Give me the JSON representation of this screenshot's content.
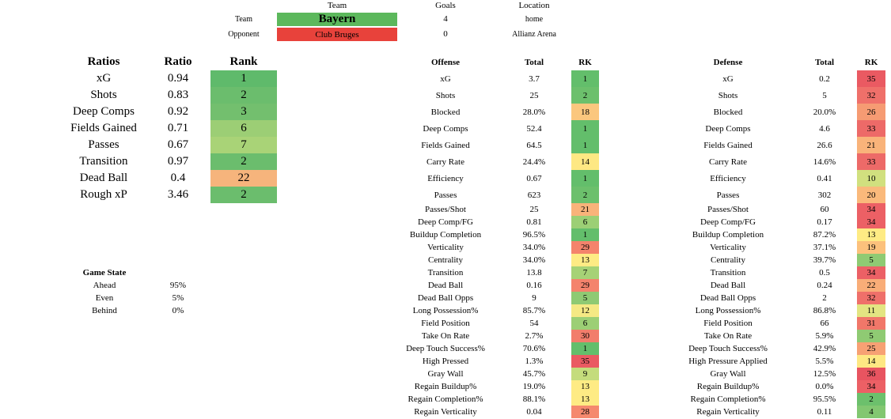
{
  "header": {
    "team_col": "Team",
    "goals_col": "Goals",
    "location_col": "Location",
    "team_row_label": "Team",
    "opponent_row_label": "Opponent",
    "team_name": "Bayern",
    "opponent_name": "Club Bruges",
    "team_goals": "4",
    "opponent_goals": "0",
    "team_location": "home",
    "venue": "Allianz Arena",
    "team_color": "#5cb85c",
    "opponent_color": "#e8423b"
  },
  "ratios": {
    "headers": [
      "Ratios",
      "Ratio",
      "Rank"
    ],
    "rows": [
      {
        "label": "xG",
        "ratio": "0.94",
        "rank": "1",
        "color": "#5fba6b"
      },
      {
        "label": "Shots",
        "ratio": "0.83",
        "rank": "2",
        "color": "#6bbd6d"
      },
      {
        "label": "Deep Comps",
        "ratio": "0.92",
        "rank": "3",
        "color": "#73bf6e"
      },
      {
        "label": "Fields Gained",
        "ratio": "0.71",
        "rank": "6",
        "color": "#9cce75"
      },
      {
        "label": "Passes",
        "ratio": "0.67",
        "rank": "7",
        "color": "#a9d377"
      },
      {
        "label": "Transition",
        "ratio": "0.97",
        "rank": "2",
        "color": "#6bbd6d"
      },
      {
        "label": "Dead Ball",
        "ratio": "0.4",
        "rank": "22",
        "color": "#f6b47c"
      },
      {
        "label": "Rough xP",
        "ratio": "3.46",
        "rank": "2",
        "color": "#6bbd6d"
      }
    ]
  },
  "game_state": {
    "title": "Game State",
    "rows": [
      {
        "label": "Ahead",
        "value": "95%"
      },
      {
        "label": "Even",
        "value": "5%"
      },
      {
        "label": "Behind",
        "value": "0%"
      }
    ]
  },
  "offense": {
    "headers": [
      "Offense",
      "Total",
      "RK"
    ],
    "rows": [
      {
        "label": "xG",
        "total": "3.7",
        "rk": "1",
        "color": "#63be6b"
      },
      {
        "label": "Shots",
        "total": "25",
        "rk": "2",
        "color": "#6cc06c"
      },
      {
        "label": "Blocked",
        "total": "28.0%",
        "rk": "18",
        "color": "#fbc77e"
      },
      {
        "label": "Deep Comps",
        "total": "52.4",
        "rk": "1",
        "color": "#63be6b"
      },
      {
        "label": "Fields Gained",
        "total": "64.5",
        "rk": "1",
        "color": "#63be6b"
      },
      {
        "label": "Carry Rate",
        "total": "24.4%",
        "rk": "14",
        "color": "#fee883"
      },
      {
        "label": "Efficiency",
        "total": "0.67",
        "rk": "1",
        "color": "#63be6b"
      },
      {
        "label": "Passes",
        "total": "623",
        "rk": "2",
        "color": "#6cc06c"
      },
      {
        "label": "Passes/Shot",
        "total": "25",
        "rk": "21",
        "color": "#f9b37a"
      },
      {
        "label": "Deep Comp/FG",
        "total": "0.81",
        "rk": "6",
        "color": "#9ccf75"
      },
      {
        "label": "Buildup Completion",
        "total": "96.5%",
        "rk": "1",
        "color": "#63be6b"
      },
      {
        "label": "Verticality",
        "total": "34.0%",
        "rk": "29",
        "color": "#f4836c"
      },
      {
        "label": "Centrality",
        "total": "34.0%",
        "rk": "13",
        "color": "#feeb84"
      },
      {
        "label": "Transition",
        "total": "13.8",
        "rk": "7",
        "color": "#a6d276"
      },
      {
        "label": "Dead Ball",
        "total": "0.16",
        "rk": "29",
        "color": "#f4836c"
      },
      {
        "label": "Dead Ball Opps",
        "total": "9",
        "rk": "5",
        "color": "#8fca73"
      },
      {
        "label": "Long Possession%",
        "total": "85.7%",
        "rk": "12",
        "color": "#f5e984"
      },
      {
        "label": "Field Position",
        "total": "54",
        "rk": "6",
        "color": "#9ccf75"
      },
      {
        "label": "Take On Rate",
        "total": "2.7%",
        "rk": "30",
        "color": "#f27d6b"
      },
      {
        "label": "Deep Touch Success%",
        "total": "70.6%",
        "rk": "1",
        "color": "#63be6b"
      },
      {
        "label": "High Pressed",
        "total": "1.3%",
        "rk": "35",
        "color": "#ea5a62"
      },
      {
        "label": "Gray Wall",
        "total": "45.7%",
        "rk": "9",
        "color": "#c4dc7c"
      },
      {
        "label": "Regain Buildup%",
        "total": "19.0%",
        "rk": "13",
        "color": "#feeb84"
      },
      {
        "label": "Regain Completion%",
        "total": "88.1%",
        "rk": "13",
        "color": "#feeb84"
      },
      {
        "label": "Regain Verticality",
        "total": "0.04",
        "rk": "28",
        "color": "#f5896e"
      }
    ]
  },
  "defense": {
    "headers": [
      "Defense",
      "Total",
      "RK"
    ],
    "rows": [
      {
        "label": "xG",
        "total": "0.2",
        "rk": "35",
        "color": "#ea5a62"
      },
      {
        "label": "Shots",
        "total": "5",
        "rk": "32",
        "color": "#ef706a"
      },
      {
        "label": "Blocked",
        "total": "20.0%",
        "rk": "26",
        "color": "#f69b73"
      },
      {
        "label": "Deep Comps",
        "total": "4.6",
        "rk": "33",
        "color": "#ed6a68"
      },
      {
        "label": "Fields Gained",
        "total": "26.6",
        "rk": "21",
        "color": "#f9b37a"
      },
      {
        "label": "Carry Rate",
        "total": "14.6%",
        "rk": "33",
        "color": "#ed6a68"
      },
      {
        "label": "Efficiency",
        "total": "0.41",
        "rk": "10",
        "color": "#d1e07f"
      },
      {
        "label": "Passes",
        "total": "302",
        "rk": "20",
        "color": "#fab97b"
      },
      {
        "label": "Passes/Shot",
        "total": "60",
        "rk": "34",
        "color": "#ec6065"
      },
      {
        "label": "Deep Comp/FG",
        "total": "0.17",
        "rk": "34",
        "color": "#ec6065"
      },
      {
        "label": "Buildup Completion",
        "total": "87.2%",
        "rk": "13",
        "color": "#feeb84"
      },
      {
        "label": "Verticality",
        "total": "37.1%",
        "rk": "19",
        "color": "#fcc17c"
      },
      {
        "label": "Centrality",
        "total": "39.7%",
        "rk": "5",
        "color": "#8fca73"
      },
      {
        "label": "Transition",
        "total": "0.5",
        "rk": "34",
        "color": "#ec6065"
      },
      {
        "label": "Dead Ball",
        "total": "0.24",
        "rk": "22",
        "color": "#f9ad78"
      },
      {
        "label": "Dead Ball Opps",
        "total": "2",
        "rk": "32",
        "color": "#ef706a"
      },
      {
        "label": "Long Possession%",
        "total": "86.8%",
        "rk": "11",
        "color": "#e3e582"
      },
      {
        "label": "Field Position",
        "total": "66",
        "rk": "31",
        "color": "#f17769"
      },
      {
        "label": "Take On Rate",
        "total": "5.9%",
        "rk": "5",
        "color": "#8fca73"
      },
      {
        "label": "Deep Touch Success%",
        "total": "42.9%",
        "rk": "25",
        "color": "#f7a174"
      },
      {
        "label": "High Pressure Applied",
        "total": "5.5%",
        "rk": "14",
        "color": "#fee883"
      },
      {
        "label": "Gray Wall",
        "total": "12.5%",
        "rk": "36",
        "color": "#e85460"
      },
      {
        "label": "Regain Buildup%",
        "total": "0.0%",
        "rk": "34",
        "color": "#ec6065"
      },
      {
        "label": "Regain Completion%",
        "total": "95.5%",
        "rk": "2",
        "color": "#6cc06c"
      },
      {
        "label": "Regain Verticality",
        "total": "0.11",
        "rk": "4",
        "color": "#82c771"
      }
    ]
  }
}
